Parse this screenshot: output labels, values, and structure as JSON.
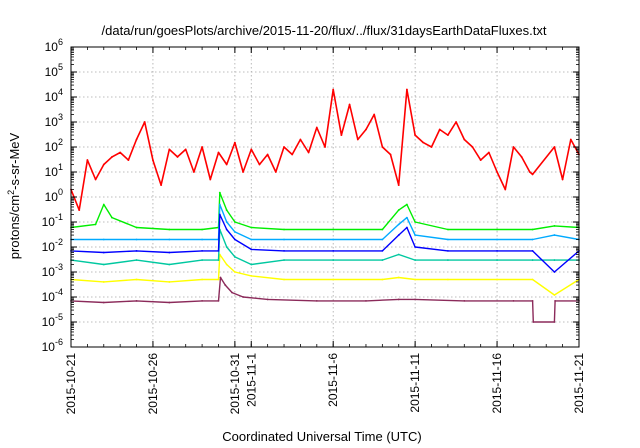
{
  "chart_data": {
    "type": "line",
    "title": "/data/run/goesPlots/archive/2015-11-20/flux/../flux/31daysEarthDataFluxes.txt",
    "xlabel": "Coordinated Universal Time (UTC)",
    "ylabel": "protons/cm²-s-sr-MeV",
    "ylabel_parts": {
      "prefix": "protons/cm",
      "superscript": "2",
      "suffix": "-s-sr-MeV"
    },
    "y_scale": "log",
    "ylim": [
      1e-06,
      1000000.0
    ],
    "y_tick_labels": [
      {
        "base": "10",
        "exp": "-6"
      },
      {
        "base": "10",
        "exp": "-5"
      },
      {
        "base": "10",
        "exp": "-4"
      },
      {
        "base": "10",
        "exp": "-3"
      },
      {
        "base": "10",
        "exp": "-2"
      },
      {
        "base": "10",
        "exp": "-1"
      },
      {
        "base": "10",
        "exp": "0"
      },
      {
        "base": "10",
        "exp": "1"
      },
      {
        "base": "10",
        "exp": "2"
      },
      {
        "base": "10",
        "exp": "3"
      },
      {
        "base": "10",
        "exp": "4"
      },
      {
        "base": "10",
        "exp": "5"
      },
      {
        "base": "10",
        "exp": "6"
      }
    ],
    "xlim": [
      "2015-10-21",
      "2015-11-21"
    ],
    "x_tick_labels": [
      "2015-10-21",
      "2015-10-26",
      "2015-10-31",
      "2015-11-1",
      "2015-11-6",
      "2015-11-11",
      "2015-11-16",
      "2015-11-21"
    ],
    "x_tick_dates": [
      "2015-10-21",
      "2015-10-26",
      "2015-10-31",
      "2015-11-01",
      "2015-11-06",
      "2015-11-11",
      "2015-11-16",
      "2015-11-21"
    ],
    "grid": true,
    "series": [
      {
        "color": "#8b2a5a",
        "x": [
          "2015-10-21T00:00",
          "2015-10-23T00:00",
          "2015-10-25T00:00",
          "2015-10-27T00:00",
          "2015-10-29T00:00",
          "2015-10-30T00:00",
          "2015-10-30T03:00",
          "2015-10-30T10:00",
          "2015-10-30T20:00",
          "2015-10-31T12:00",
          "2015-11-02T00:00",
          "2015-11-05T00:00",
          "2015-11-08T00:00",
          "2015-11-10T00:00",
          "2015-11-11T00:00",
          "2015-11-14T00:00",
          "2015-11-17T00:00",
          "2015-11-18T04:00",
          "2015-11-18T05:00",
          "2015-11-19T12:00",
          "2015-11-19T13:00",
          "2015-11-21T00:00"
        ],
        "y": [
          7e-05,
          6e-05,
          7e-05,
          6e-05,
          7e-05,
          7e-05,
          0.0006,
          0.0003,
          0.00015,
          0.0001,
          8e-05,
          7e-05,
          7e-05,
          8e-05,
          8e-05,
          7e-05,
          7e-05,
          7e-05,
          1e-05,
          1e-05,
          7e-05,
          7e-05
        ]
      },
      {
        "color": "#ffff00",
        "x": [
          "2015-10-21T00:00",
          "2015-10-23T00:00",
          "2015-10-25T00:00",
          "2015-10-27T00:00",
          "2015-10-29T00:00",
          "2015-10-30T00:00",
          "2015-10-30T02:00",
          "2015-10-30T12:00",
          "2015-10-31T00:00",
          "2015-11-01T00:00",
          "2015-11-03T00:00",
          "2015-11-06T00:00",
          "2015-11-09T00:00",
          "2015-11-10T00:00",
          "2015-11-11T00:00",
          "2015-11-13T00:00",
          "2015-11-16T00:00",
          "2015-11-18T04:00",
          "2015-11-19T12:00",
          "2015-11-21T00:00"
        ],
        "y": [
          0.0005,
          0.0004,
          0.0005,
          0.0004,
          0.0005,
          0.0005,
          0.005,
          0.002,
          0.001,
          0.0007,
          0.0005,
          0.0005,
          0.0005,
          0.0006,
          0.0005,
          0.0005,
          0.0005,
          0.0005,
          0.00012,
          0.0005
        ]
      },
      {
        "color": "#00c8a0",
        "x": [
          "2015-10-21T00:00",
          "2015-10-23T00:00",
          "2015-10-25T00:00",
          "2015-10-27T00:00",
          "2015-10-29T00:00",
          "2015-10-30T00:00",
          "2015-10-30T02:00",
          "2015-10-30T12:00",
          "2015-10-31T00:00",
          "2015-11-01T00:00",
          "2015-11-03T00:00",
          "2015-11-06T00:00",
          "2015-11-09T00:00",
          "2015-11-10T00:00",
          "2015-11-11T00:00",
          "2015-11-13T00:00",
          "2015-11-16T00:00",
          "2015-11-18T04:00",
          "2015-11-19T12:00",
          "2015-11-21T00:00"
        ],
        "y": [
          0.003,
          0.002,
          0.003,
          0.002,
          0.003,
          0.003,
          0.05,
          0.01,
          0.004,
          0.002,
          0.003,
          0.003,
          0.003,
          0.005,
          0.003,
          0.003,
          0.003,
          0.003,
          0.003,
          0.003
        ]
      },
      {
        "color": "#00ee00",
        "x": [
          "2015-10-21T00:00",
          "2015-10-22T12:00",
          "2015-10-23T00:00",
          "2015-10-23T12:00",
          "2015-10-25T00:00",
          "2015-10-27T00:00",
          "2015-10-29T00:00",
          "2015-10-30T00:00",
          "2015-10-30T02:00",
          "2015-10-30T12:00",
          "2015-10-31T00:00",
          "2015-11-01T00:00",
          "2015-11-03T00:00",
          "2015-11-06T00:00",
          "2015-11-09T00:00",
          "2015-11-10T00:00",
          "2015-11-10T12:00",
          "2015-11-11T00:00",
          "2015-11-13T00:00",
          "2015-11-16T00:00",
          "2015-11-18T04:00",
          "2015-11-19T12:00",
          "2015-11-21T00:00"
        ],
        "y": [
          0.06,
          0.08,
          0.5,
          0.15,
          0.06,
          0.05,
          0.05,
          0.06,
          1.5,
          0.3,
          0.1,
          0.06,
          0.05,
          0.05,
          0.05,
          0.3,
          0.5,
          0.1,
          0.05,
          0.05,
          0.05,
          0.07,
          0.06
        ]
      },
      {
        "color": "#00aaff",
        "x": [
          "2015-10-21T00:00",
          "2015-10-23T00:00",
          "2015-10-25T00:00",
          "2015-10-27T00:00",
          "2015-10-29T00:00",
          "2015-10-30T00:00",
          "2015-10-30T02:00",
          "2015-10-30T12:00",
          "2015-10-31T00:00",
          "2015-11-01T00:00",
          "2015-11-03T00:00",
          "2015-11-06T00:00",
          "2015-11-09T00:00",
          "2015-11-10T00:00",
          "2015-11-10T12:00",
          "2015-11-11T00:00",
          "2015-11-13T00:00",
          "2015-11-16T00:00",
          "2015-11-18T04:00",
          "2015-11-19T12:00",
          "2015-11-21T00:00"
        ],
        "y": [
          0.02,
          0.02,
          0.02,
          0.02,
          0.02,
          0.02,
          0.5,
          0.1,
          0.04,
          0.02,
          0.02,
          0.02,
          0.02,
          0.08,
          0.15,
          0.03,
          0.02,
          0.02,
          0.02,
          0.03,
          0.02
        ]
      },
      {
        "color": "#0000ff",
        "x": [
          "2015-10-21T00:00",
          "2015-10-23T00:00",
          "2015-10-25T00:00",
          "2015-10-27T00:00",
          "2015-10-29T00:00",
          "2015-10-30T00:00",
          "2015-10-30T02:00",
          "2015-10-30T12:00",
          "2015-10-31T00:00",
          "2015-11-01T00:00",
          "2015-11-03T00:00",
          "2015-11-06T00:00",
          "2015-11-09T00:00",
          "2015-11-10T00:00",
          "2015-11-10T12:00",
          "2015-11-11T00:00",
          "2015-11-13T00:00",
          "2015-11-16T00:00",
          "2015-11-18T04:00",
          "2015-11-19T12:00",
          "2015-11-21T00:00"
        ],
        "y": [
          0.007,
          0.006,
          0.007,
          0.006,
          0.007,
          0.007,
          0.2,
          0.05,
          0.02,
          0.008,
          0.007,
          0.007,
          0.007,
          0.03,
          0.06,
          0.01,
          0.007,
          0.007,
          0.007,
          0.001,
          0.007
        ]
      },
      {
        "color": "#ff0000",
        "x": [
          "2015-10-21T00:00",
          "2015-10-21T12:00",
          "2015-10-22T00:00",
          "2015-10-22T12:00",
          "2015-10-23T00:00",
          "2015-10-23T12:00",
          "2015-10-24T00:00",
          "2015-10-24T12:00",
          "2015-10-25T00:00",
          "2015-10-25T12:00",
          "2015-10-26T00:00",
          "2015-10-26T12:00",
          "2015-10-27T00:00",
          "2015-10-27T12:00",
          "2015-10-28T00:00",
          "2015-10-28T12:00",
          "2015-10-29T00:00",
          "2015-10-29T12:00",
          "2015-10-30T00:00",
          "2015-10-30T12:00",
          "2015-10-31T00:00",
          "2015-10-31T12:00",
          "2015-11-01T00:00",
          "2015-11-01T12:00",
          "2015-11-02T00:00",
          "2015-11-02T12:00",
          "2015-11-03T00:00",
          "2015-11-03T12:00",
          "2015-11-04T00:00",
          "2015-11-04T12:00",
          "2015-11-05T00:00",
          "2015-11-05T12:00",
          "2015-11-06T00:00",
          "2015-11-06T12:00",
          "2015-11-07T00:00",
          "2015-11-07T12:00",
          "2015-11-08T00:00",
          "2015-11-08T12:00",
          "2015-11-09T00:00",
          "2015-11-09T12:00",
          "2015-11-10T00:00",
          "2015-11-10T12:00",
          "2015-11-11T00:00",
          "2015-11-11T12:00",
          "2015-11-12T00:00",
          "2015-11-12T12:00",
          "2015-11-13T00:00",
          "2015-11-13T12:00",
          "2015-11-14T00:00",
          "2015-11-14T12:00",
          "2015-11-15T00:00",
          "2015-11-15T12:00",
          "2015-11-16T00:00",
          "2015-11-16T12:00",
          "2015-11-17T00:00",
          "2015-11-17T12:00",
          "2015-11-18T00:00",
          "2015-11-18T04:00",
          "2015-11-19T12:00",
          "2015-11-20T00:00",
          "2015-11-20T12:00",
          "2015-11-21T00:00"
        ],
        "y": [
          2,
          0.3,
          30,
          5,
          20,
          40,
          60,
          30,
          200,
          1000,
          30,
          3,
          80,
          40,
          80,
          10,
          100,
          5,
          60,
          20,
          150,
          10,
          80,
          20,
          50,
          10,
          100,
          50,
          200,
          60,
          600,
          100,
          20000,
          300,
          5000,
          200,
          500,
          2000,
          100,
          50,
          3,
          20000,
          300,
          150,
          100,
          500,
          300,
          1000,
          200,
          100,
          30,
          60,
          10,
          2,
          100,
          40,
          10,
          8,
          100,
          5,
          200,
          50
        ]
      }
    ]
  }
}
